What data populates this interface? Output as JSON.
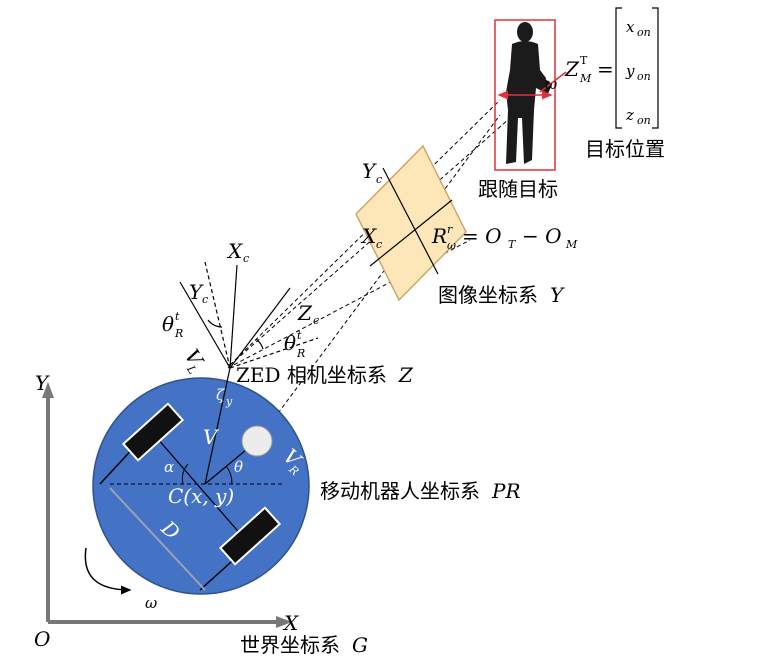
{
  "world": {
    "origin": "O",
    "x_axis": "X",
    "y_axis": "Y",
    "caption": "世界坐标系",
    "caption_symbol": "G"
  },
  "robot": {
    "caption": "移动机器人坐标系",
    "caption_symbol": "PR",
    "center": "C(x, y)",
    "omega": "ω",
    "alpha": "α",
    "theta": "θ",
    "D": "D",
    "V": "V",
    "VR": "V",
    "VR_sub": "R",
    "VL": "V",
    "VL_sub": "L",
    "zeta": "ζ",
    "zeta_sub": "y",
    "body_color": "#4472c4"
  },
  "camera": {
    "caption": "ZED 相机坐标系",
    "caption_symbol": "Z",
    "Xc": "X",
    "Xc_sub": "c",
    "Yc": "Y",
    "Yc_sub": "c",
    "Zc": "Z",
    "Zc_sub": "c",
    "theta_left": "θ",
    "theta_left_sup": "t",
    "theta_left_sub": "R",
    "theta_right": "θ",
    "theta_right_sup": "t",
    "theta_right_sub": "R"
  },
  "image_plane": {
    "caption": "图像坐标系",
    "caption_symbol": "Y",
    "Yc": "Y",
    "Yc_sub": "c",
    "Xc": "X",
    "Xc_sub": "c",
    "equation_R": "R",
    "equation_R_sup": "r",
    "equation_R_sub": "ω",
    "equation_rhs_1": "= O",
    "equation_rhs_1_sub": "T",
    "equation_rhs_2": "− O",
    "equation_rhs_2_sub": "M",
    "fill_color": "#fde6b8"
  },
  "target": {
    "caption": "跟随目标",
    "position_caption": "目标位置",
    "Z": "Z",
    "Z_sup": "T",
    "Z_sub": "M",
    "equals": "=",
    "vector": [
      "x",
      "y",
      "z"
    ],
    "vector_sub": "on",
    "omega": "ω",
    "box_color": "#e0303a"
  }
}
